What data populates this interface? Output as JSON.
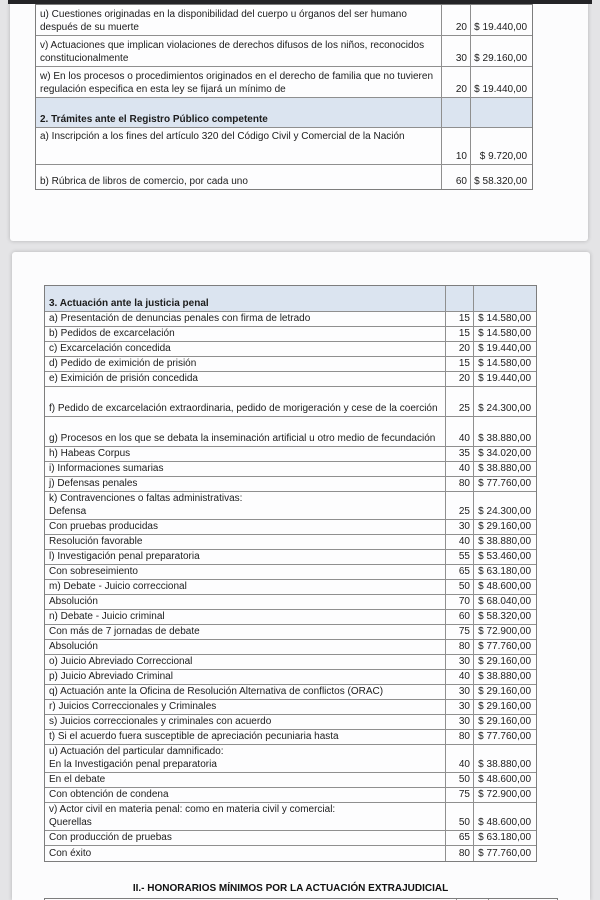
{
  "page1": {
    "rows": [
      {
        "label": "u) Cuestiones originadas en la disponibilidad del cuerpo u órganos del ser humano después de su muerte",
        "uma": "20",
        "amount": "$ 19.440,00",
        "wrap": true
      },
      {
        "label": "v) Actuaciones que implican violaciones de derechos difusos de los niños, reconocidos constitucionalmente",
        "uma": "30",
        "amount": "$ 29.160,00",
        "wrap": true
      },
      {
        "label": "w) En los procesos o procedimientos originados en el derecho de familia que no tuvieren regulación especifica en esta ley se fijará un mínimo de",
        "uma": "20",
        "amount": "$ 19.440,00",
        "wrap": true
      },
      {
        "section": true,
        "label": "2. Trámites ante el Registro Público competente"
      },
      {
        "label": "a) Inscripción a los fines del artículo 320 del Código Civil y Comercial de la Nación",
        "uma": "10",
        "amount": "$ 9.720,00",
        "tall_top": true
      },
      {
        "label": "b) Rúbrica de libros de comercio, por cada uno",
        "uma": "60",
        "amount": "$ 58.320,00"
      }
    ]
  },
  "page2": {
    "rows": [
      {
        "section": true,
        "label": "3. Actuación ante la justicia penal"
      },
      {
        "label": "a) Presentación de denuncias penales con firma de letrado",
        "uma": "15",
        "amount": "$ 14.580,00"
      },
      {
        "label": "b) Pedidos de excarcelación",
        "uma": "15",
        "amount": "$ 14.580,00"
      },
      {
        "label": "c) Excarcelación concedida",
        "uma": "20",
        "amount": "$ 19.440,00"
      },
      {
        "label": "d) Pedido de eximición de prisión",
        "uma": "15",
        "amount": "$ 14.580,00"
      },
      {
        "label": "e) Eximición de prisión concedida",
        "uma": "20",
        "amount": "$ 19.440,00"
      },
      {
        "label": "f) Pedido de excarcelación extraordinaria, pedido de morigeración y cese de la coerción",
        "uma": "25",
        "amount": "$ 24.300,00",
        "tall": true
      },
      {
        "label": "g) Procesos en los que se debata la inseminación artificial u otro medio de fecundación",
        "uma": "40",
        "amount": "$ 38.880,00",
        "tall": true
      },
      {
        "label": "h) Habeas Corpus",
        "uma": "35",
        "amount": "$ 34.020,00"
      },
      {
        "label": "i) Informaciones sumarias",
        "uma": "40",
        "amount": "$ 38.880,00"
      },
      {
        "label": "j) Defensas penales",
        "uma": "80",
        "amount": "$ 77.760,00"
      },
      {
        "label": "k) Contravenciones o faltas administrativas:",
        "label2": "Defensa",
        "uma": "25",
        "amount": "$ 24.300,00"
      },
      {
        "label": "Con pruebas producidas",
        "uma": "30",
        "amount": "$ 29.160,00"
      },
      {
        "label": "Resolución favorable",
        "uma": "40",
        "amount": "$ 38.880,00"
      },
      {
        "label": "l) Investigación penal preparatoria",
        "uma": "55",
        "amount": "$ 53.460,00"
      },
      {
        "label": "Con sobreseimiento",
        "uma": "65",
        "amount": "$ 63.180,00"
      },
      {
        "label": "m) Debate - Juicio correccional",
        "uma": "50",
        "amount": "$ 48.600,00"
      },
      {
        "label": "Absolución",
        "uma": "70",
        "amount": "$ 68.040,00"
      },
      {
        "label": "n) Debate - Juicio criminal",
        "uma": "60",
        "amount": "$ 58.320,00"
      },
      {
        "label": "Con más de 7 jornadas de debate",
        "uma": "75",
        "amount": "$ 72.900,00"
      },
      {
        "label": "Absolución",
        "uma": "80",
        "amount": "$ 77.760,00"
      },
      {
        "label": "o) Juicio Abreviado Correccional",
        "uma": "30",
        "amount": "$ 29.160,00"
      },
      {
        "label": "p) Juicio Abreviado Criminal",
        "uma": "40",
        "amount": "$ 38.880,00"
      },
      {
        "label": "q) Actuación ante la Oficina de Resolución Alternativa de conflictos (ORAC)",
        "uma": "30",
        "amount": "$ 29.160,00"
      },
      {
        "label": "r) Juicios Correccionales y Criminales",
        "uma": "30",
        "amount": "$ 29.160,00"
      },
      {
        "label": "s) Juicios correccionales y criminales con acuerdo",
        "uma": "30",
        "amount": "$ 29.160,00"
      },
      {
        "label": "t) Si el acuerdo fuera susceptible de apreciación pecuniaria hasta",
        "uma": "80",
        "amount": "$ 77.760,00"
      },
      {
        "label": "u) Actuación del particular damnificado:",
        "label2": "En la Investigación penal preparatoria",
        "uma": "40",
        "amount": "$ 38.880,00"
      },
      {
        "label": "En el debate",
        "uma": "50",
        "amount": "$ 48.600,00"
      },
      {
        "label": "Con obtención de condena",
        "uma": "75",
        "amount": "$ 72.900,00"
      },
      {
        "label": "v) Actor civil en materia penal: como en materia civil y comercial:",
        "label2": "Querellas",
        "uma": "50",
        "amount": "$ 48.600,00"
      },
      {
        "label": "Con producción de pruebas",
        "uma": "65",
        "amount": "$ 63.180,00"
      },
      {
        "label": "Con éxito",
        "uma": "80",
        "amount": "$ 77.760,00"
      }
    ],
    "footer_title": "II.- HONORARIOS MÍNIMOS POR LA ACTUACIÓN EXTRAJUDICIAL"
  }
}
